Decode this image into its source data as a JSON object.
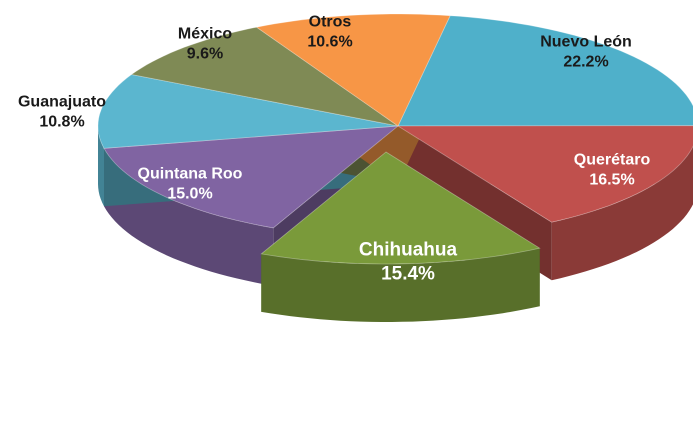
{
  "chart_data": {
    "type": "pie",
    "categories": [
      "Nuevo León",
      "Querétaro",
      "Chihuahua",
      "Quintana Roo",
      "Guanajuato",
      "México",
      "Otros"
    ],
    "values": [
      22.2,
      16.5,
      15.4,
      15.0,
      10.8,
      9.6,
      10.6
    ],
    "value_labels": [
      "22.2%",
      "16.5%",
      "15.4%",
      "15.0%",
      "10.8%",
      "9.6%",
      "10.6%"
    ],
    "colors": [
      "#4fb0ca",
      "#c0504d",
      "#7a9a3a",
      "#8064a2",
      "#5bb6cf",
      "#7f8a55",
      "#f79646"
    ]
  }
}
